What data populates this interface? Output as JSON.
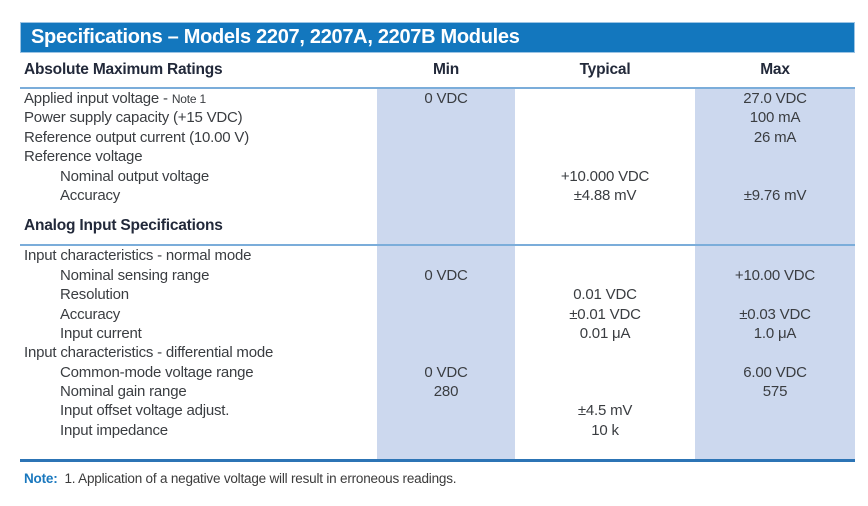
{
  "title": "Specifications – Models 2207, 2207A, 2207B Modules",
  "colors": {
    "title_bar": "#1377be",
    "band": "#ccd8ee",
    "rule_light": "#7badda",
    "rule_bottom": "#2c74b5",
    "note_label": "#1a78be",
    "title_text": "#ffffff"
  },
  "table": {
    "left_header": "Absolute Maximum Ratings",
    "columns": [
      "Min",
      "Typical",
      "Max"
    ],
    "rows": [
      {
        "label": "Applied input voltage -",
        "note_ref": "Note 1",
        "indent": 0,
        "min": "0 VDC",
        "typical": "",
        "max": "27.0 VDC"
      },
      {
        "label": "Power supply capacity (+15 VDC)",
        "indent": 0,
        "min": "",
        "typical": "",
        "max": "100 mA"
      },
      {
        "label": "Reference output current (10.00 V)",
        "indent": 0,
        "min": "",
        "typical": "",
        "max": "26 mA"
      },
      {
        "label": "Reference voltage",
        "indent": 0,
        "min": "",
        "typical": "",
        "max": ""
      },
      {
        "label": "Nominal output voltage",
        "indent": 1,
        "min": "",
        "typical": "+10.000 VDC",
        "max": ""
      },
      {
        "label": "Accuracy",
        "indent": 1,
        "min": "",
        "typical": "±4.88 mV",
        "max": "±9.76 mV"
      },
      {
        "type": "section",
        "label": "Analog Input Specifications"
      },
      {
        "label": "Input characteristics - normal mode",
        "indent": 0,
        "min": "",
        "typical": "",
        "max": ""
      },
      {
        "label": "Nominal sensing range",
        "indent": 1,
        "min": "0 VDC",
        "typical": "",
        "max": "+10.00 VDC"
      },
      {
        "label": "Resolution",
        "indent": 1,
        "min": "",
        "typical": "0.01 VDC",
        "max": ""
      },
      {
        "label": "Accuracy",
        "indent": 1,
        "min": "",
        "typical": "±0.01 VDC",
        "max": "±0.03 VDC"
      },
      {
        "label": "Input current",
        "indent": 1,
        "min": "",
        "typical": "0.01 μA",
        "max": "1.0 μA"
      },
      {
        "label": "Input characteristics - differential mode",
        "indent": 0,
        "min": "",
        "typical": "",
        "max": ""
      },
      {
        "label": "Common-mode voltage range",
        "indent": 1,
        "min": "0 VDC",
        "typical": "",
        "max": "6.00 VDC"
      },
      {
        "label": "Nominal gain range",
        "indent": 1,
        "min": "280",
        "typical": "",
        "max": "575"
      },
      {
        "label": "Input offset voltage adjust.",
        "indent": 1,
        "min": "",
        "typical": "±4.5 mV",
        "max": ""
      },
      {
        "label": "Input impedance",
        "indent": 1,
        "min": "",
        "typical": "10 k",
        "max": ""
      }
    ]
  },
  "note": {
    "label": "Note:",
    "text": "1. Application of a negative voltage will result in erroneous readings."
  }
}
